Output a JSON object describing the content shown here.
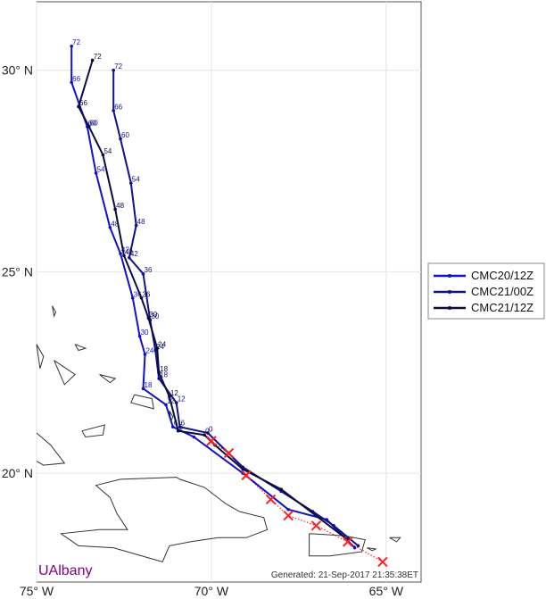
{
  "credit": "UAlbany",
  "generated": "Generated: 21-Sep-2017 21:35:38ET",
  "axes": {
    "lon_ticks": [
      {
        "lon": -75,
        "label": "75° W"
      },
      {
        "lon": -70,
        "label": "70° W"
      },
      {
        "lon": -65,
        "label": "65° W"
      }
    ],
    "lat_ticks": [
      {
        "lat": 30,
        "label": "30° N"
      },
      {
        "lat": 25,
        "label": "25° N"
      },
      {
        "lat": 20,
        "label": "20° N"
      }
    ],
    "lon_range": [
      -75,
      -64
    ],
    "lat_range": [
      17.3,
      31.7
    ],
    "grid": true
  },
  "legend": {
    "placement": "right",
    "entries": [
      {
        "label": "CMC20/12Z",
        "color": "#1111cc"
      },
      {
        "label": "CMC21/00Z",
        "color": "#11118a"
      },
      {
        "label": "CMC21/12Z",
        "color": "#0b0b3c"
      }
    ]
  },
  "observed_track": {
    "color": "#ff2020",
    "points": [
      [
        -65.1,
        17.8
      ],
      [
        -66.1,
        18.3
      ],
      [
        -67.0,
        18.7
      ],
      [
        -67.8,
        18.95
      ],
      [
        -68.3,
        19.35
      ],
      [
        -69.0,
        19.95
      ],
      [
        -69.5,
        20.5
      ],
      [
        -70.0,
        20.8
      ]
    ]
  },
  "forecasts": [
    {
      "name": "CMC20/12Z",
      "color": "#1111cc",
      "points": [
        {
          "h": "",
          "lon": -65.9,
          "lat": 18.15
        },
        {
          "h": "",
          "lon": -66.7,
          "lat": 18.85
        },
        {
          "h": "",
          "lon": -67.8,
          "lat": 19.1
        },
        {
          "h": "",
          "lon": -69.1,
          "lat": 20.0
        },
        {
          "h": "",
          "lon": -70.5,
          "lat": 20.9
        },
        {
          "h": "6",
          "lon": -71.1,
          "lat": 21.15
        },
        {
          "h": "12",
          "lon": -71.3,
          "lat": 21.7
        },
        {
          "h": "18",
          "lon": -71.95,
          "lat": 22.1
        },
        {
          "h": "24",
          "lon": -71.9,
          "lat": 22.95
        },
        {
          "h": "30",
          "lon": -72.05,
          "lat": 23.4
        },
        {
          "h": "36",
          "lon": -72.25,
          "lat": 24.35
        },
        {
          "h": "42",
          "lon": -72.6,
          "lat": 25.45
        },
        {
          "h": "48",
          "lon": -72.9,
          "lat": 26.1
        },
        {
          "h": "54",
          "lon": -73.3,
          "lat": 27.45
        },
        {
          "h": "60",
          "lon": -73.55,
          "lat": 28.6
        },
        {
          "h": "66",
          "lon": -74.0,
          "lat": 29.7
        },
        {
          "h": "72",
          "lon": -74.0,
          "lat": 30.6
        }
      ]
    },
    {
      "name": "CMC21/00Z",
      "color": "#11118a",
      "points": [
        {
          "h": "",
          "lon": -65.8,
          "lat": 18.2
        },
        {
          "h": "",
          "lon": -66.5,
          "lat": 18.7
        },
        {
          "h": "",
          "lon": -67.1,
          "lat": 19.05
        },
        {
          "h": "",
          "lon": -68.0,
          "lat": 19.55
        },
        {
          "h": "",
          "lon": -69.1,
          "lat": 20.15
        },
        {
          "h": "0",
          "lon": -70.1,
          "lat": 21.0
        },
        {
          "h": "6",
          "lon": -70.9,
          "lat": 21.15
        },
        {
          "h": "12",
          "lon": -71.0,
          "lat": 21.75
        },
        {
          "h": "18",
          "lon": -71.5,
          "lat": 22.35
        },
        {
          "h": "24",
          "lon": -71.6,
          "lat": 23.05
        },
        {
          "h": "30",
          "lon": -71.75,
          "lat": 23.8
        },
        {
          "h": "36",
          "lon": -71.95,
          "lat": 24.95
        },
        {
          "h": "42",
          "lon": -72.35,
          "lat": 25.35
        },
        {
          "h": "48",
          "lon": -72.15,
          "lat": 26.15
        },
        {
          "h": "54",
          "lon": -72.3,
          "lat": 27.2
        },
        {
          "h": "60",
          "lon": -72.6,
          "lat": 28.3
        },
        {
          "h": "66",
          "lon": -72.8,
          "lat": 29.0
        },
        {
          "h": "72",
          "lon": -72.8,
          "lat": 30.0
        }
      ]
    },
    {
      "name": "CMC21/12Z",
      "color": "#0b0b3c",
      "points": [
        {
          "h": "",
          "lon": -66.1,
          "lat": 18.35
        },
        {
          "h": "",
          "lon": -68.0,
          "lat": 19.6
        },
        {
          "h": "",
          "lon": -69.1,
          "lat": 20.1
        },
        {
          "h": "",
          "lon": -69.9,
          "lat": 20.7
        },
        {
          "h": "0",
          "lon": -70.2,
          "lat": 20.95
        },
        {
          "h": "6",
          "lon": -70.95,
          "lat": 21.05
        },
        {
          "h": "12",
          "lon": -71.2,
          "lat": 21.9
        },
        {
          "h": "18",
          "lon": -71.5,
          "lat": 22.5
        },
        {
          "h": "24",
          "lon": -71.55,
          "lat": 23.1
        },
        {
          "h": "30",
          "lon": -71.8,
          "lat": 23.85
        },
        {
          "h": "36",
          "lon": -72.0,
          "lat": 24.35
        },
        {
          "h": "42",
          "lon": -72.5,
          "lat": 25.4
        },
        {
          "h": "48",
          "lon": -72.75,
          "lat": 26.55
        },
        {
          "h": "54",
          "lon": -73.1,
          "lat": 27.9
        },
        {
          "h": "60",
          "lon": -73.5,
          "lat": 28.6
        },
        {
          "h": "66",
          "lon": -73.8,
          "lat": 29.1
        },
        {
          "h": "72",
          "lon": -73.4,
          "lat": 30.25
        }
      ]
    }
  ],
  "land": [
    {
      "name": "Hispaniola",
      "points": [
        [
          -71.0,
          19.9
        ],
        [
          -72.6,
          19.85
        ],
        [
          -73.3,
          19.7
        ],
        [
          -72.9,
          19.4
        ],
        [
          -72.7,
          19.0
        ],
        [
          -72.4,
          18.6
        ],
        [
          -73.2,
          18.6
        ],
        [
          -74.3,
          18.5
        ],
        [
          -73.8,
          18.2
        ],
        [
          -72.8,
          18.15
        ],
        [
          -71.4,
          17.8
        ],
        [
          -71.2,
          18.2
        ],
        [
          -70.6,
          18.3
        ],
        [
          -69.8,
          18.4
        ],
        [
          -69.0,
          18.4
        ],
        [
          -68.4,
          18.6
        ],
        [
          -68.5,
          18.9
        ],
        [
          -69.2,
          19.05
        ],
        [
          -69.6,
          19.25
        ],
        [
          -70.2,
          19.65
        ],
        [
          -70.9,
          19.85
        ],
        [
          -71.0,
          19.9
        ]
      ]
    },
    {
      "name": "Puerto Rico",
      "points": [
        [
          -67.2,
          18.5
        ],
        [
          -66.2,
          18.45
        ],
        [
          -65.6,
          18.35
        ],
        [
          -65.7,
          18.05
        ],
        [
          -66.6,
          17.95
        ],
        [
          -67.2,
          17.95
        ],
        [
          -67.2,
          18.5
        ]
      ]
    },
    {
      "name": "Cuba",
      "points": [
        [
          -75.0,
          20.3
        ],
        [
          -74.8,
          20.2
        ],
        [
          -74.2,
          20.25
        ],
        [
          -74.6,
          20.7
        ],
        [
          -75.0,
          21.0
        ]
      ]
    },
    {
      "name": "Great Inagua",
      "points": [
        [
          -73.7,
          21.05
        ],
        [
          -73.05,
          21.2
        ],
        [
          -73.1,
          20.95
        ],
        [
          -73.6,
          20.9
        ],
        [
          -73.7,
          21.05
        ]
      ]
    },
    {
      "name": "Caicos Islands",
      "points": [
        [
          -72.2,
          21.95
        ],
        [
          -71.7,
          21.85
        ],
        [
          -71.65,
          21.6
        ],
        [
          -72.3,
          21.75
        ],
        [
          -72.2,
          21.95
        ]
      ]
    },
    {
      "name": "Grand Turk",
      "points": [
        [
          -71.2,
          21.55
        ],
        [
          -71.1,
          21.4
        ],
        [
          -71.15,
          21.3
        ],
        [
          -71.2,
          21.55
        ]
      ]
    },
    {
      "name": "Mayaguana",
      "points": [
        [
          -73.2,
          22.45
        ],
        [
          -72.75,
          22.35
        ],
        [
          -72.9,
          22.25
        ],
        [
          -73.2,
          22.45
        ]
      ]
    },
    {
      "name": "Acklins",
      "points": [
        [
          -74.5,
          22.8
        ],
        [
          -73.9,
          22.45
        ],
        [
          -74.2,
          22.2
        ],
        [
          -74.5,
          22.8
        ]
      ]
    },
    {
      "name": "Long Island",
      "points": [
        [
          -75.0,
          23.2
        ],
        [
          -74.8,
          22.9
        ],
        [
          -74.9,
          22.6
        ],
        [
          -75.0,
          23.2
        ]
      ]
    },
    {
      "name": "Samana Cay",
      "points": [
        [
          -73.9,
          23.2
        ],
        [
          -73.6,
          23.1
        ],
        [
          -73.8,
          23.05
        ],
        [
          -73.9,
          23.2
        ]
      ]
    },
    {
      "name": "San Salvador",
      "points": [
        [
          -74.55,
          24.15
        ],
        [
          -74.45,
          24.0
        ],
        [
          -74.5,
          23.9
        ],
        [
          -74.55,
          24.15
        ]
      ]
    },
    {
      "name": "Virgin Islands",
      "points": [
        [
          -64.9,
          18.4
        ],
        [
          -64.6,
          18.4
        ],
        [
          -64.7,
          18.3
        ],
        [
          -64.9,
          18.4
        ]
      ]
    },
    {
      "name": "Vieques",
      "points": [
        [
          -65.55,
          18.15
        ],
        [
          -65.3,
          18.12
        ],
        [
          -65.4,
          18.08
        ],
        [
          -65.55,
          18.15
        ]
      ]
    }
  ]
}
